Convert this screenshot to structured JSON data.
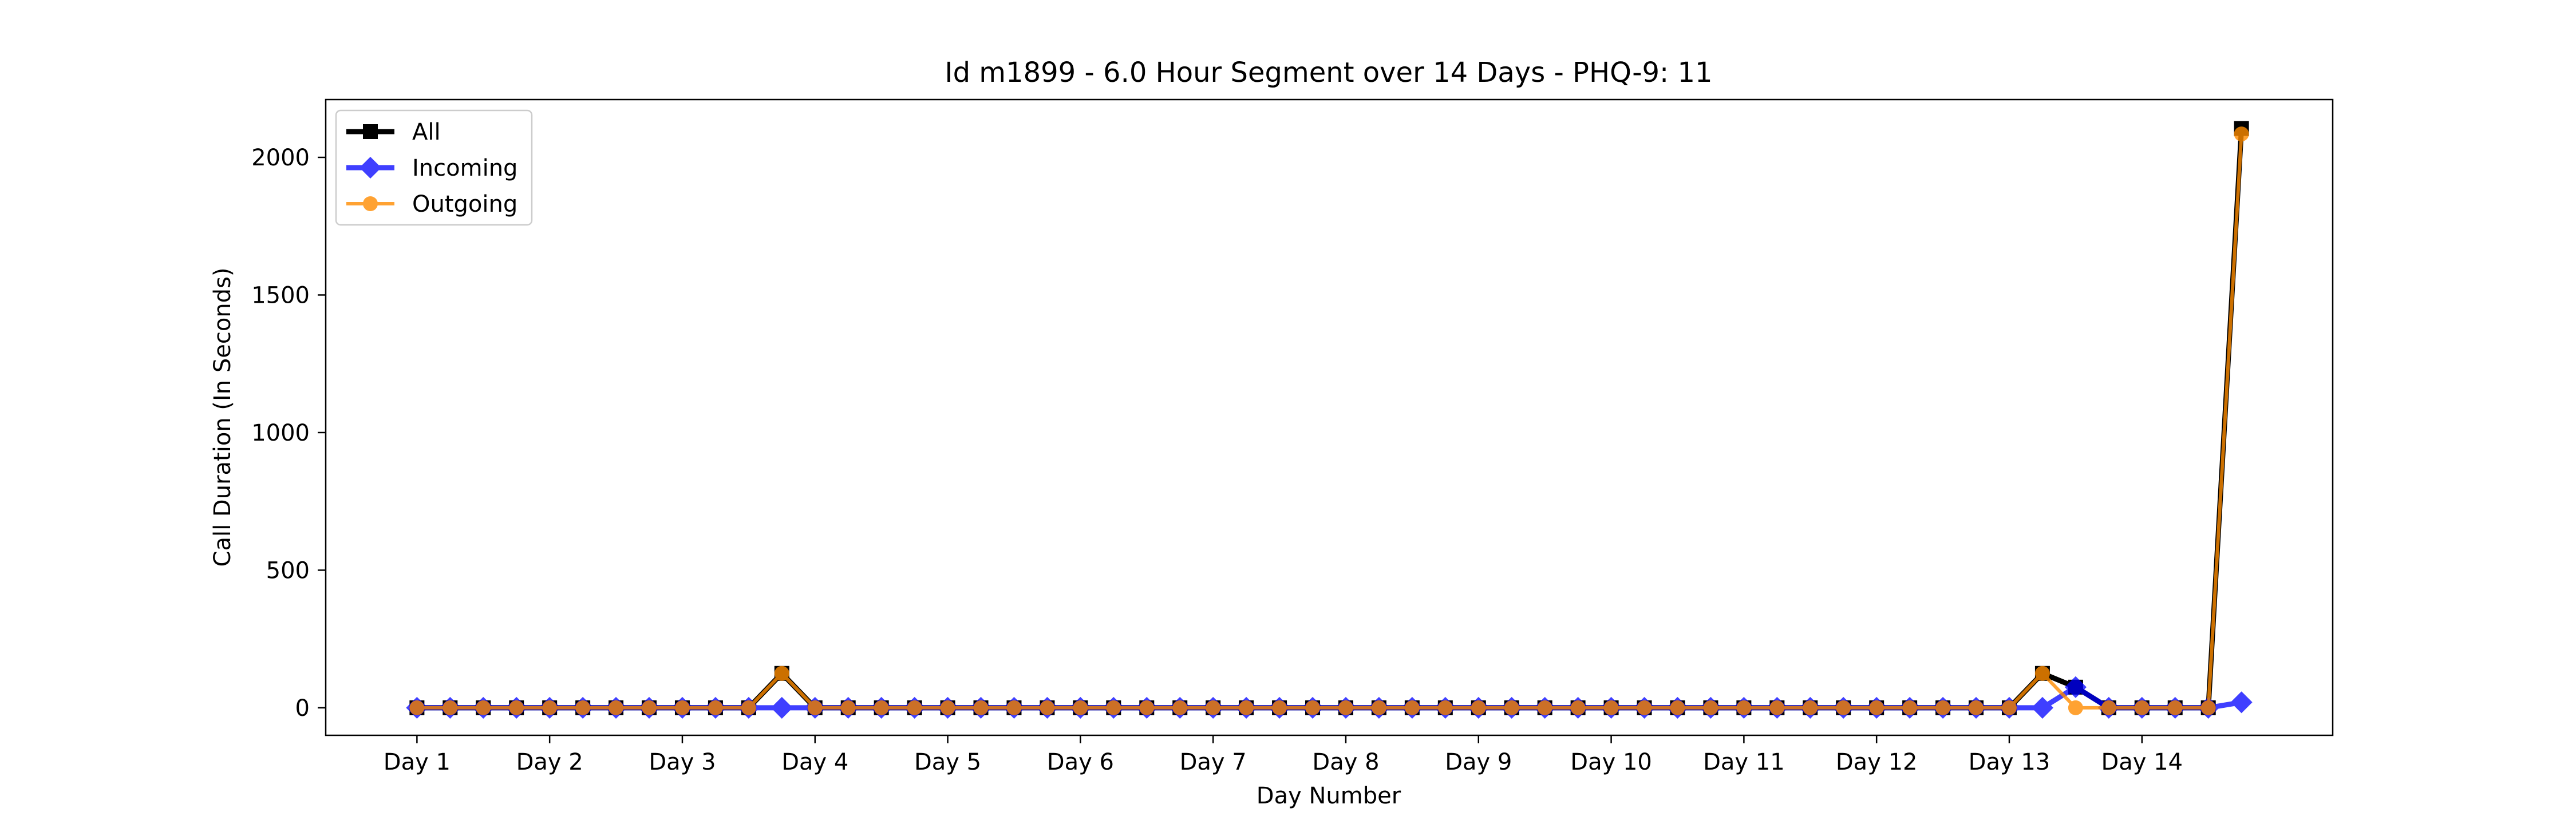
{
  "chart_data": {
    "type": "line",
    "title": "Id m1899 - 6.0 Hour Segment over 14 Days - PHQ-9: 11",
    "xlabel": "Day Number",
    "ylabel": "Call Duration (In Seconds)",
    "categories": [
      "Day 1",
      "Day 2",
      "Day 3",
      "Day 4",
      "Day 5",
      "Day 6",
      "Day 7",
      "Day 8",
      "Day 9",
      "Day 10",
      "Day 11",
      "Day 12",
      "Day 13",
      "Day 14"
    ],
    "x": [
      0,
      1,
      2,
      3,
      4,
      5,
      6,
      7,
      8,
      9,
      10,
      11,
      12,
      13,
      14,
      15,
      16,
      17,
      18,
      19,
      20,
      21,
      22,
      23,
      24,
      25,
      26,
      27,
      28,
      29,
      30,
      31,
      32,
      33,
      34,
      35,
      36,
      37,
      38,
      39,
      40,
      41,
      42,
      43,
      44,
      45,
      46,
      47,
      48,
      49,
      50,
      51,
      52,
      53,
      54,
      55
    ],
    "xlim": [
      -2.75,
      57.75
    ],
    "ylim": [
      -100,
      2210
    ],
    "yticks": [
      0,
      500,
      1000,
      1500,
      2000
    ],
    "grid": false,
    "legend": "top-left",
    "series": [
      {
        "name": "All",
        "color": "#000000",
        "marker": "square",
        "values": [
          0,
          0,
          0,
          0,
          0,
          0,
          0,
          0,
          0,
          0,
          0,
          125,
          0,
          0,
          0,
          0,
          0,
          0,
          0,
          0,
          0,
          0,
          0,
          0,
          0,
          0,
          0,
          0,
          0,
          0,
          0,
          0,
          0,
          0,
          0,
          0,
          0,
          0,
          0,
          0,
          0,
          0,
          0,
          0,
          0,
          0,
          0,
          0,
          0,
          125,
          75,
          0,
          0,
          0,
          0,
          2105
        ]
      },
      {
        "name": "Incoming",
        "color": "#0000ff",
        "marker": "diamond",
        "values": [
          0,
          0,
          0,
          0,
          0,
          0,
          0,
          0,
          0,
          0,
          0,
          0,
          0,
          0,
          0,
          0,
          0,
          0,
          0,
          0,
          0,
          0,
          0,
          0,
          0,
          0,
          0,
          0,
          0,
          0,
          0,
          0,
          0,
          0,
          0,
          0,
          0,
          0,
          0,
          0,
          0,
          0,
          0,
          0,
          0,
          0,
          0,
          0,
          0,
          0,
          75,
          0,
          0,
          0,
          0,
          20
        ]
      },
      {
        "name": "Outgoing",
        "color": "#ff8c00",
        "marker": "circle",
        "values": [
          0,
          0,
          0,
          0,
          0,
          0,
          0,
          0,
          0,
          0,
          0,
          125,
          0,
          0,
          0,
          0,
          0,
          0,
          0,
          0,
          0,
          0,
          0,
          0,
          0,
          0,
          0,
          0,
          0,
          0,
          0,
          0,
          0,
          0,
          0,
          0,
          0,
          0,
          0,
          0,
          0,
          0,
          0,
          0,
          0,
          0,
          0,
          0,
          0,
          125,
          0,
          0,
          0,
          0,
          0,
          2085
        ]
      }
    ]
  }
}
